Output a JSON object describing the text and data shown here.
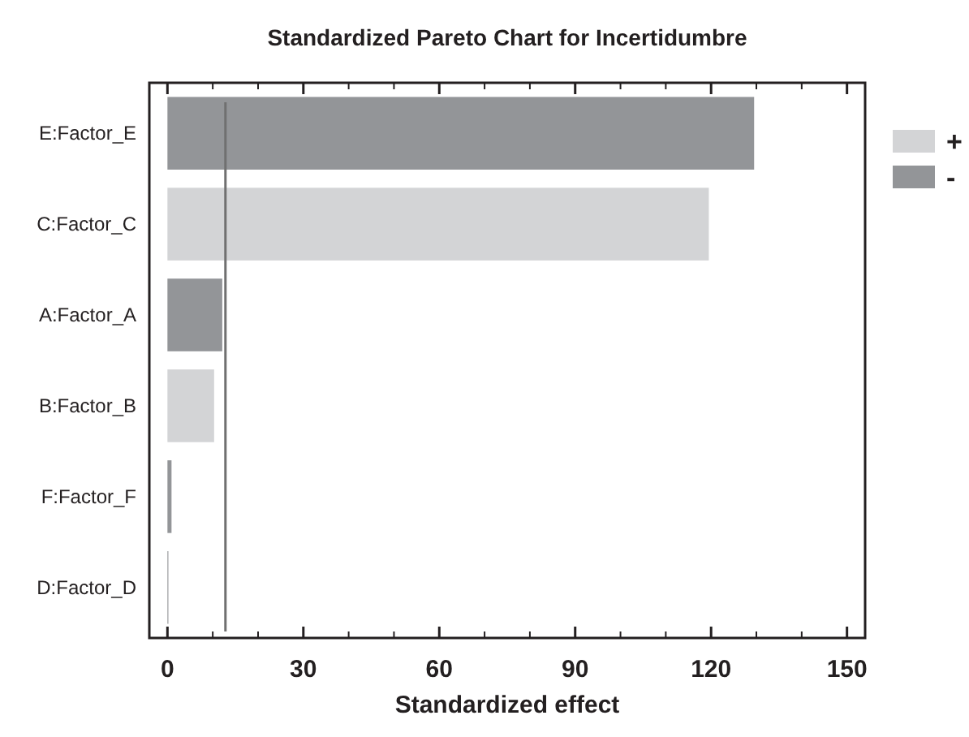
{
  "chart_data": {
    "type": "bar",
    "orientation": "horizontal",
    "title": "Standardized Pareto Chart for Incertidumbre",
    "xlabel": "Standardized effect",
    "categories": [
      "E:Factor_E",
      "C:Factor_C",
      "A:Factor_A",
      "B:Factor_B",
      "F:Factor_F",
      "D:Factor_D"
    ],
    "series": [
      {
        "name": "+",
        "color": "#d3d4d6",
        "values": [
          null,
          119.5,
          null,
          10.3,
          null,
          null
        ]
      },
      {
        "name": "-",
        "color": "#939598",
        "values": [
          129.5,
          null,
          12.1,
          null,
          0.9,
          0.2
        ]
      }
    ],
    "xlim": [
      -4,
      154
    ],
    "xticks": [
      0,
      {
        "value": 10,
        "label": null
      },
      {
        "value": 20,
        "label": null
      },
      30,
      {
        "value": 40,
        "label": null
      },
      {
        "value": 50,
        "label": null
      },
      60,
      {
        "value": 70,
        "label": null
      },
      {
        "value": 80,
        "label": null
      },
      90,
      {
        "value": 100,
        "label": null
      },
      {
        "value": 110,
        "label": null
      },
      120,
      {
        "value": 130,
        "label": null
      },
      {
        "value": 140,
        "label": null
      },
      150
    ],
    "ref_lines": [
      {
        "axis": "x",
        "value": 12.8,
        "color": "#707070"
      }
    ],
    "legend": "top right",
    "grid": false
  }
}
